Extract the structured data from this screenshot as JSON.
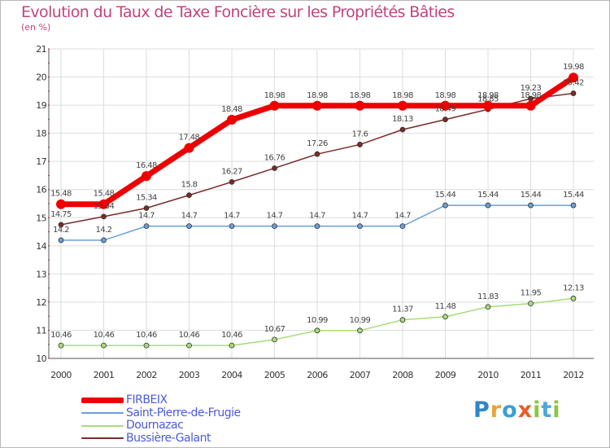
{
  "header": {
    "title": "Evolution du Taux de Taxe Foncière sur les Propriétés Bâties",
    "subtitle": "(en %)"
  },
  "logo": {
    "letters": [
      {
        "char": "P",
        "color": "#2e86c8"
      },
      {
        "char": "r",
        "color": "#e8a33a"
      },
      {
        "char": "o",
        "color": "#3a9fd6"
      },
      {
        "char": "x",
        "color": "#e85e25"
      },
      {
        "char": "i",
        "color": "#8cc63f"
      },
      {
        "char": "t",
        "color": "#4aa8d8"
      },
      {
        "char": "i",
        "color": "#8cc63f"
      }
    ]
  },
  "chart_data": {
    "type": "line",
    "title": "Evolution du Taux de Taxe Foncière sur les Propriétés Bâties",
    "ylabel": "(en %)",
    "xlabel": "",
    "ylim": [
      10,
      21
    ],
    "grid": true,
    "legend_position": "bottom-left",
    "categories": [
      "2000",
      "2001",
      "2002",
      "2003",
      "2004",
      "2005",
      "2006",
      "2007",
      "2008",
      "2009",
      "2010",
      "2011",
      "2012"
    ],
    "y_ticks": [
      "10",
      "11",
      "12",
      "13",
      "14",
      "15",
      "16",
      "17",
      "18",
      "19",
      "20",
      "21"
    ],
    "series": [
      {
        "name": "Bussière-Galant",
        "color": "#7a2a2a",
        "values": [
          14.75,
          15.04,
          15.34,
          15.8,
          16.27,
          16.76,
          17.26,
          17.6,
          18.13,
          18.49,
          18.85,
          19.23,
          19.42
        ],
        "labels": [
          "14.75",
          "15.04",
          "15.34",
          "15.8",
          "16.27",
          "16.76",
          "17.26",
          "17.6",
          "18.13",
          "18.49",
          "18.85",
          "19.23",
          "19.42"
        ]
      },
      {
        "name": "Saint-Pierre-de-Frugie",
        "color": "#6a9fd8",
        "values": [
          14.2,
          14.2,
          14.7,
          14.7,
          14.7,
          14.7,
          14.7,
          14.7,
          14.7,
          15.44,
          15.44,
          15.44,
          15.44
        ],
        "labels": [
          "14.2",
          "14.2",
          "14.7",
          "14.7",
          "14.7",
          "14.7",
          "14.7",
          "14.7",
          "14.7",
          "15.44",
          "15.44",
          "15.44",
          "15.44"
        ]
      },
      {
        "name": "Dournazac",
        "color": "#a8dc78",
        "values": [
          10.46,
          10.46,
          10.46,
          10.46,
          10.46,
          10.67,
          10.99,
          10.99,
          11.37,
          11.48,
          11.83,
          11.95,
          12.13
        ],
        "labels": [
          "10.46",
          "10.46",
          "10.46",
          "10.46",
          "10.46",
          "10.67",
          "10.99",
          "10.99",
          "11.37",
          "11.48",
          "11.83",
          "11.95",
          "12.13"
        ]
      },
      {
        "name": "FIRBEIX",
        "color": "#ee0000",
        "values": [
          15.48,
          15.48,
          16.48,
          17.48,
          18.48,
          18.98,
          18.98,
          18.98,
          18.98,
          18.98,
          18.98,
          18.98,
          19.98
        ],
        "labels": [
          "15.48",
          "15.48",
          "16.48",
          "17.48",
          "18.48",
          "18.98",
          "18.98",
          "18.98",
          "18.98",
          "18.98",
          "18.98",
          "18.98",
          "19.98"
        ]
      }
    ],
    "legend": [
      "FIRBEIX",
      "Saint-Pierre-de-Frugie",
      "Dournazac",
      "Bussière-Galant"
    ]
  }
}
